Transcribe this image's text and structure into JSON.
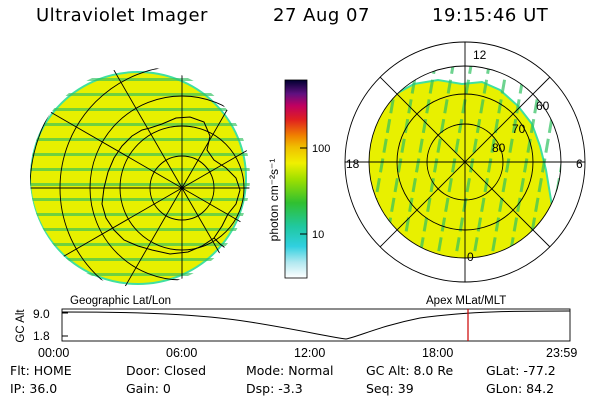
{
  "header": {
    "title": "Ultraviolet Imager",
    "date": "27 Aug 07",
    "time": "19:15:46 UT"
  },
  "colorbar": {
    "unit_label": "photon cm⁻²s⁻¹",
    "ticks": [
      "100",
      "10"
    ]
  },
  "panels": {
    "left_label": "Geographic Lat/Lon",
    "right_label": "Apex MLat/MLT"
  },
  "polar_plot": {
    "mlt_labels": {
      "top": "12",
      "left": "18",
      "right": "6",
      "bottom": "0"
    },
    "mlat_labels": [
      "60",
      "70",
      "80"
    ]
  },
  "altitude_strip": {
    "axis_label": "GC Alt",
    "y_ticks": [
      "9.0",
      "1.8"
    ],
    "time_ticks": [
      "00:00",
      "06:00",
      "12:00",
      "18:00",
      "23:59"
    ]
  },
  "status": {
    "flt": "Flt: HOME",
    "ip": "IP: 36.0",
    "door": "Door: Closed",
    "gain": "Gain:  0",
    "mode": "Mode: Normal",
    "dsp": "Dsp:    -3.3",
    "gc_alt": "GC Alt: 8.0 Re",
    "seq": "Seq: 39",
    "glat": "GLat: -77.2",
    "glon": "GLon:  84.2"
  },
  "colors": {
    "aurora_fill": "#e8f000",
    "aurora_edge": "#40e0a0",
    "stripe": "#30c060",
    "marker": "#cc0000"
  }
}
